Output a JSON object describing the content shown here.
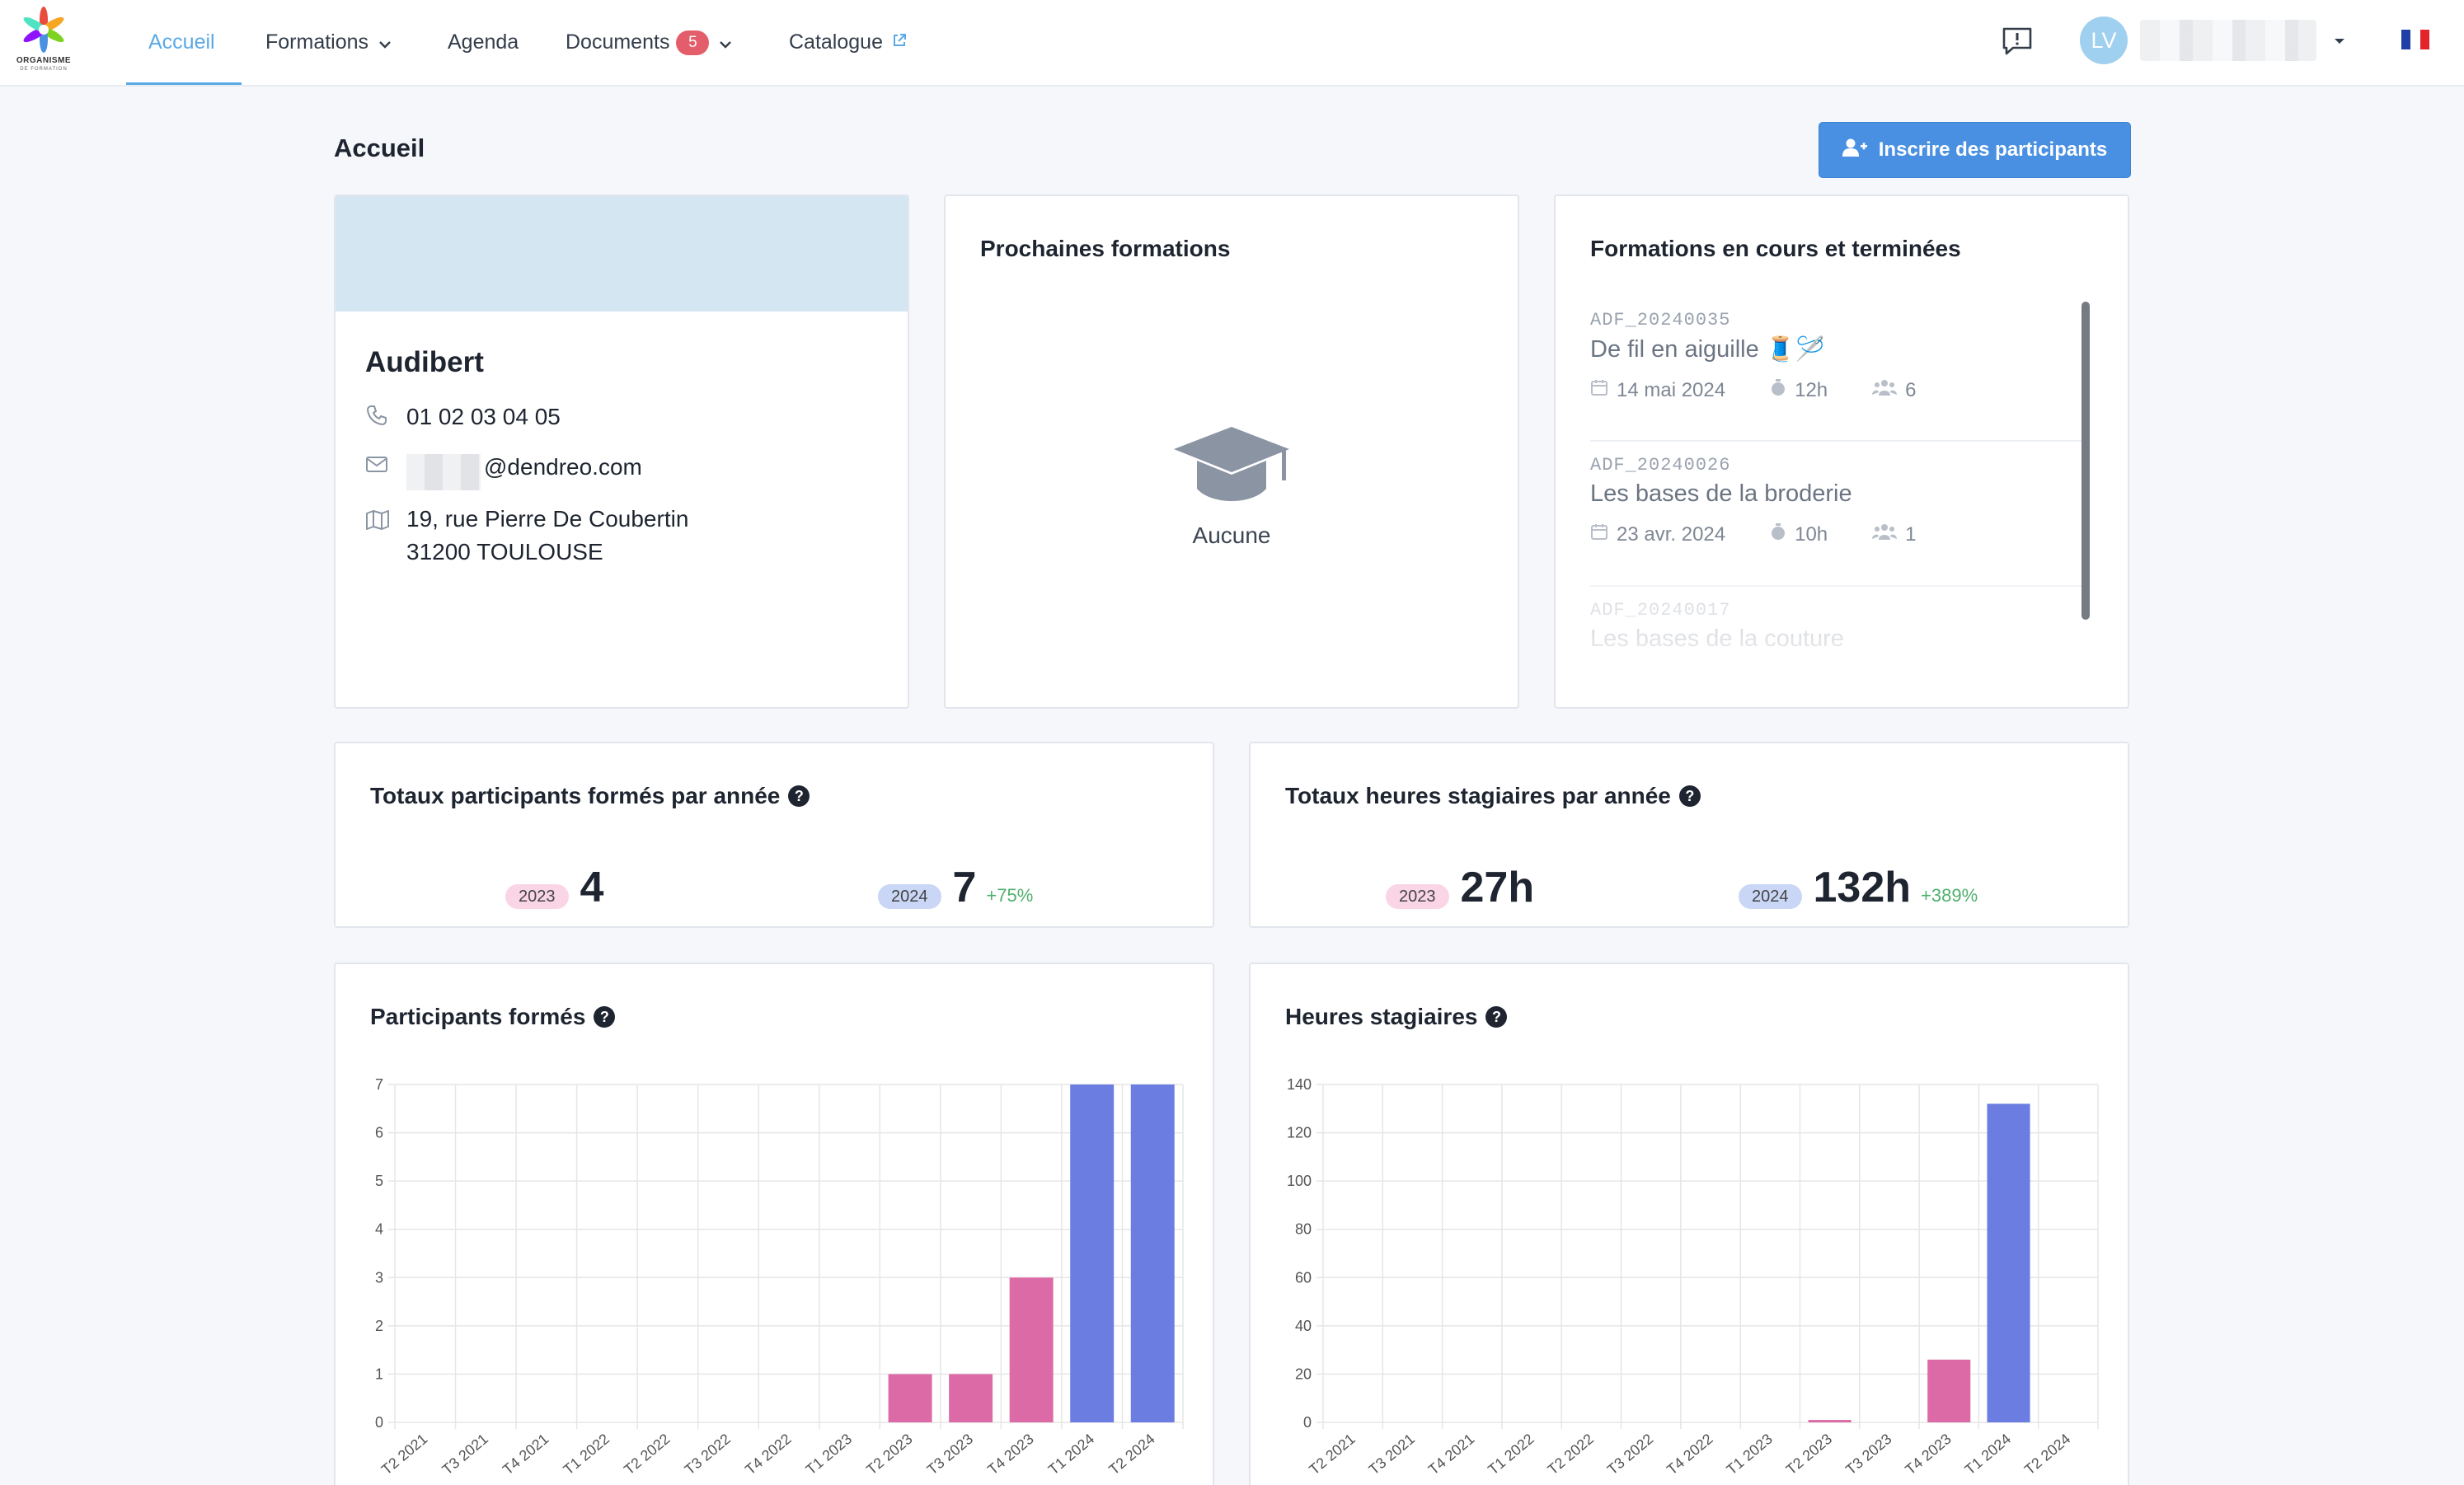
{
  "nav": {
    "logo_text": "ORGANISME",
    "logo_sub": "DE FORMATION",
    "home": "Accueil",
    "trainings": "Formations",
    "agenda": "Agenda",
    "documents": "Documents",
    "documents_count": "5",
    "catalogue": "Catalogue",
    "avatar_initials": "LV"
  },
  "page": {
    "title": "Accueil",
    "enroll_button": "Inscrire des participants"
  },
  "company": {
    "name": "Audibert",
    "phone": "01 02 03 04 05",
    "email_domain": "@dendreo.com",
    "address_line1": "19, rue Pierre De Coubertin",
    "address_line2": "31200 TOULOUSE"
  },
  "upcoming": {
    "title": "Prochaines formations",
    "empty_label": "Aucune"
  },
  "trainings_list": {
    "title": "Formations en cours et terminées",
    "items": [
      {
        "code": "ADF_20240035",
        "name": "De fil en aiguille 🧵🪡",
        "date": "14 mai 2024",
        "hours": "12h",
        "participants": "6"
      },
      {
        "code": "ADF_20240026",
        "name": "Les bases de la broderie",
        "date": "23 avr. 2024",
        "hours": "10h",
        "participants": "1"
      },
      {
        "code": "ADF_20240017",
        "name": "Les bases de la couture",
        "date": "",
        "hours": "",
        "participants": ""
      }
    ]
  },
  "stats_participants": {
    "title": "Totaux participants formés par année",
    "year_a": "2023",
    "value_a": "4",
    "year_b": "2024",
    "value_b": "7",
    "delta_b": "+75%"
  },
  "stats_hours": {
    "title": "Totaux heures stagiaires par année",
    "year_a": "2023",
    "value_a": "27h",
    "year_b": "2024",
    "value_b": "132h",
    "delta_b": "+389%"
  },
  "colors": {
    "accent": "#5aa9e6",
    "primary_button": "#4a90e2",
    "bar_2023": "#dc6aa6",
    "bar_2024": "#6b7de0",
    "delta_green": "#4fb06d"
  },
  "chart_data": [
    {
      "type": "bar",
      "title": "Participants formés",
      "categories": [
        "T2 2021",
        "T3 2021",
        "T4 2021",
        "T1 2022",
        "T2 2022",
        "T3 2022",
        "T4 2022",
        "T1 2023",
        "T2 2023",
        "T3 2023",
        "T4 2023",
        "T1 2024",
        "T2 2024"
      ],
      "values": [
        0,
        0,
        0,
        0,
        0,
        0,
        0,
        0,
        1,
        1,
        3,
        7,
        7
      ],
      "bar_colors": [
        "#dc6aa6",
        "#dc6aa6",
        "#dc6aa6",
        "#dc6aa6",
        "#dc6aa6",
        "#dc6aa6",
        "#dc6aa6",
        "#dc6aa6",
        "#dc6aa6",
        "#dc6aa6",
        "#dc6aa6",
        "#6b7de0",
        "#6b7de0"
      ],
      "ylim": [
        0,
        7
      ],
      "yticks": [
        0,
        1,
        2,
        3,
        4,
        5,
        6,
        7
      ],
      "grid": true
    },
    {
      "type": "bar",
      "title": "Heures stagiaires",
      "categories": [
        "T2 2021",
        "T3 2021",
        "T4 2021",
        "T1 2022",
        "T2 2022",
        "T3 2022",
        "T4 2022",
        "T1 2023",
        "T2 2023",
        "T3 2023",
        "T4 2023",
        "T1 2024",
        "T2 2024"
      ],
      "values": [
        0,
        0,
        0,
        0,
        0,
        0,
        0,
        0,
        1,
        0,
        26,
        132,
        0
      ],
      "bar_colors": [
        "#dc6aa6",
        "#dc6aa6",
        "#dc6aa6",
        "#dc6aa6",
        "#dc6aa6",
        "#dc6aa6",
        "#dc6aa6",
        "#dc6aa6",
        "#dc6aa6",
        "#dc6aa6",
        "#dc6aa6",
        "#6b7de0",
        "#6b7de0"
      ],
      "ylim": [
        0,
        140
      ],
      "yticks": [
        0,
        20,
        40,
        60,
        80,
        100,
        120,
        140
      ],
      "grid": true
    }
  ]
}
